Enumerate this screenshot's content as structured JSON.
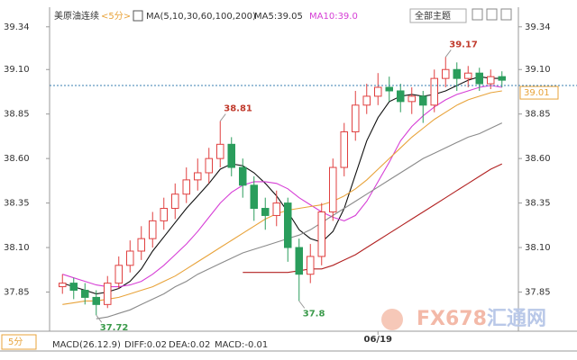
{
  "chart_data": {
    "type": "candlestick",
    "title": "美原油连续",
    "period": "<5分>",
    "indicator": "MA(5,10,30,60,100,200)",
    "ma_readouts": [
      "MA5:39.05",
      "MA10:39.0"
    ],
    "theme_button": "全部主题",
    "period_button": "5分",
    "macd_readouts": [
      "MACD(26.12.9)",
      "DIFF:0.02",
      "DEA:0.02",
      "MACD:-0.01"
    ],
    "watermark": [
      "FX678",
      "汇通网"
    ],
    "categories": [
      null,
      null,
      null,
      null,
      null,
      null,
      null,
      null,
      null,
      null,
      null,
      null,
      null,
      null,
      null,
      null,
      null,
      null,
      null,
      null,
      null,
      null,
      null,
      null,
      null,
      null,
      null,
      null,
      "06/19",
      null,
      null,
      null,
      null,
      null,
      null,
      null,
      null,
      null,
      null,
      null
    ],
    "open": [
      37.88,
      37.9,
      37.86,
      37.82,
      37.78,
      37.9,
      38.0,
      38.08,
      38.15,
      38.25,
      38.32,
      38.4,
      38.48,
      38.52,
      38.6,
      38.68,
      38.55,
      38.45,
      38.32,
      38.28,
      38.35,
      38.1,
      37.95,
      38.05,
      38.3,
      38.55,
      38.75,
      38.9,
      38.95,
      39.0,
      38.98,
      38.92,
      38.95,
      38.9,
      39.05,
      39.1,
      39.05,
      39.08,
      39.02,
      39.06
    ],
    "high": [
      37.95,
      37.93,
      37.9,
      37.86,
      37.94,
      38.05,
      38.14,
      38.22,
      38.3,
      38.38,
      38.46,
      38.55,
      38.6,
      38.66,
      38.81,
      38.72,
      38.6,
      38.5,
      38.38,
      38.42,
      38.38,
      38.15,
      38.12,
      38.35,
      38.6,
      38.8,
      38.98,
      39.02,
      39.08,
      39.06,
      39.02,
      39.0,
      38.98,
      39.1,
      39.17,
      39.14,
      39.12,
      39.11,
      39.1,
      39.09
    ],
    "low": [
      37.84,
      37.81,
      37.78,
      37.72,
      37.76,
      37.87,
      37.96,
      38.03,
      38.1,
      38.2,
      38.26,
      38.35,
      38.42,
      38.46,
      38.55,
      38.5,
      38.38,
      38.25,
      38.2,
      38.22,
      38.02,
      37.8,
      37.9,
      38.0,
      38.25,
      38.5,
      38.7,
      38.85,
      38.9,
      38.92,
      38.86,
      38.85,
      38.8,
      38.86,
      39.0,
      38.98,
      39.0,
      38.98,
      38.99,
      39.0
    ],
    "close": [
      37.9,
      37.86,
      37.82,
      37.78,
      37.9,
      38.0,
      38.08,
      38.15,
      38.25,
      38.32,
      38.4,
      38.48,
      38.52,
      38.6,
      38.68,
      38.55,
      38.45,
      38.32,
      38.28,
      38.35,
      38.1,
      37.95,
      38.05,
      38.3,
      38.55,
      38.75,
      38.9,
      38.95,
      39.0,
      38.98,
      38.92,
      38.95,
      38.9,
      39.05,
      39.1,
      39.05,
      39.08,
      39.02,
      39.06,
      39.04
    ],
    "up_color": "#e04040",
    "down_color": "#2a9d5c",
    "ma_series": [
      {
        "color": "#111111",
        "values": [
          37.9,
          37.88,
          37.86,
          37.84,
          37.85,
          37.87,
          37.91,
          37.98,
          38.08,
          38.16,
          38.24,
          38.32,
          38.39,
          38.46,
          38.54,
          38.57,
          38.56,
          38.52,
          38.46,
          38.39,
          38.3,
          38.2,
          38.15,
          38.13,
          38.19,
          38.32,
          38.51,
          38.7,
          38.83,
          38.92,
          38.95,
          38.96,
          38.95,
          38.96,
          38.98,
          39.01,
          39.04,
          39.06,
          39.05,
          39.05
        ]
      },
      {
        "color": "#d63fd6",
        "values": [
          37.95,
          37.93,
          37.91,
          37.89,
          37.88,
          37.88,
          37.89,
          37.91,
          37.95,
          38.0,
          38.06,
          38.12,
          38.19,
          38.27,
          38.35,
          38.41,
          38.45,
          38.47,
          38.47,
          38.46,
          38.43,
          38.38,
          38.34,
          38.3,
          38.27,
          38.25,
          38.28,
          38.36,
          38.47,
          38.58,
          38.7,
          38.78,
          38.84,
          38.89,
          38.93,
          38.96,
          38.98,
          39.0,
          39.01,
          39.0
        ]
      },
      {
        "color": "#e8a33a",
        "values": [
          37.78,
          37.79,
          37.8,
          37.8,
          37.81,
          37.82,
          37.84,
          37.86,
          37.88,
          37.91,
          37.94,
          37.98,
          38.02,
          38.06,
          38.1,
          38.14,
          38.18,
          38.22,
          38.26,
          38.29,
          38.31,
          38.32,
          38.33,
          38.34,
          38.36,
          38.39,
          38.43,
          38.48,
          38.54,
          38.6,
          38.66,
          38.72,
          38.77,
          38.82,
          38.86,
          38.9,
          38.93,
          38.95,
          38.97,
          38.98
        ]
      },
      {
        "color": "#8a8a8a",
        "values": [
          null,
          null,
          null,
          37.7,
          37.71,
          37.73,
          37.75,
          37.78,
          37.81,
          37.84,
          37.88,
          37.91,
          37.95,
          37.98,
          38.01,
          38.04,
          38.07,
          38.09,
          38.11,
          38.13,
          38.15,
          38.17,
          38.2,
          38.24,
          38.28,
          38.32,
          38.36,
          38.4,
          38.44,
          38.48,
          38.52,
          38.56,
          38.6,
          38.63,
          38.66,
          38.69,
          38.72,
          38.74,
          38.77,
          38.8
        ]
      },
      {
        "color": "#b22222",
        "values": [
          null,
          null,
          null,
          null,
          null,
          null,
          null,
          null,
          null,
          null,
          null,
          null,
          null,
          null,
          null,
          null,
          37.96,
          37.96,
          37.96,
          37.96,
          37.96,
          37.97,
          37.98,
          37.98,
          38.0,
          38.03,
          38.06,
          38.1,
          38.14,
          38.18,
          38.22,
          38.26,
          38.3,
          38.34,
          38.38,
          38.42,
          38.46,
          38.5,
          38.54,
          38.57
        ]
      }
    ],
    "last_price": 39.01,
    "last_price_color": "#e8a33a",
    "ylim": [
      37.63,
      39.44
    ],
    "yticks": [
      39.34,
      {
        "value": 39.1,
        "label": "39.10"
      },
      38.85,
      {
        "value": 38.6,
        "label": "38.60"
      },
      38.35,
      {
        "value": 38.1,
        "label": "38.10"
      },
      37.85
    ]
  }
}
